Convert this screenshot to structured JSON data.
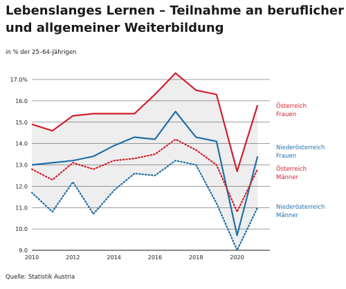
{
  "title": "Lebenslanges Lernen – Teilnahme an beruflicher und allgemeiner Weiterbildung",
  "subtitle": "in % der 25–64-Jährigen",
  "source": "Quelle: Statistik Austria",
  "chart_data": {
    "type": "line",
    "title": "Lebenslanges Lernen – Teilnahme an beruflicher und allgemeiner Weiterbildung",
    "ylabel": "in % der 25–64-Jährigen",
    "xlabel": "",
    "x": [
      2010,
      2011,
      2012,
      2013,
      2014,
      2015,
      2016,
      2017,
      2018,
      2019,
      2020,
      2021
    ],
    "xlim": [
      2010,
      2021.6
    ],
    "ylim": [
      9.0,
      17.0
    ],
    "xticks": [
      "2010",
      "2012",
      "2014",
      "2016",
      "2018",
      "2020"
    ],
    "yticks": [
      "9.0",
      "10.0",
      "11.0",
      "12.0",
      "13.0",
      "14.0",
      "15.0",
      "16.0",
      "17.0%"
    ],
    "grid": true,
    "legend": "direct labels at right end of lines",
    "shaded_band": "area between the highest and lowest series",
    "series": [
      {
        "name": "Österreich Frauen",
        "style": "solid",
        "color": "#d0202f",
        "values": [
          14.9,
          14.6,
          15.3,
          15.4,
          15.4,
          15.4,
          16.3,
          17.3,
          16.5,
          16.3,
          12.7,
          15.8
        ]
      },
      {
        "name": "Niederösterreich Frauen",
        "style": "solid",
        "color": "#1f6fa8",
        "values": [
          13.0,
          13.1,
          13.2,
          13.4,
          13.9,
          14.3,
          14.2,
          15.5,
          14.3,
          14.1,
          9.7,
          13.4
        ]
      },
      {
        "name": "Österreich Männer",
        "style": "dotted",
        "color": "#d0202f",
        "values": [
          12.8,
          12.3,
          13.1,
          12.8,
          13.2,
          13.3,
          13.5,
          14.2,
          13.7,
          13.0,
          10.8,
          12.8
        ]
      },
      {
        "name": "Niederösterreich Männer",
        "style": "dotted",
        "color": "#1f6fa8",
        "values": [
          11.7,
          10.8,
          12.2,
          10.7,
          11.8,
          12.6,
          12.5,
          13.2,
          13.0,
          11.2,
          9.0,
          11.0
        ]
      }
    ]
  },
  "colors": {
    "red": "#d0202f",
    "blue": "#1f6fa8",
    "band": "#eeeeee",
    "grid": "#1a1a1a"
  }
}
